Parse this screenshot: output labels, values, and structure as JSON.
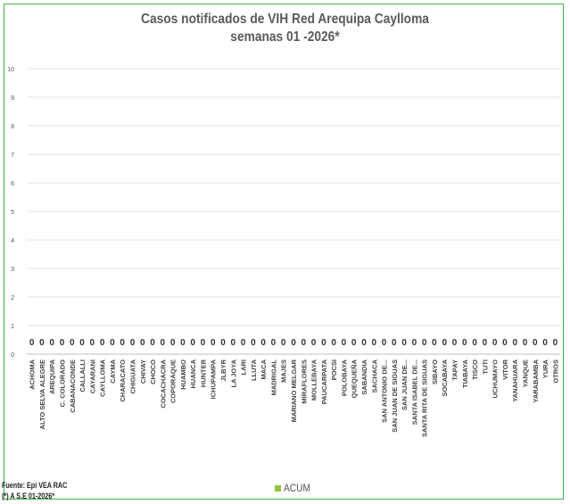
{
  "chart_data": {
    "type": "bar",
    "title": "Casos notificados de VIH Red Arequipa Caylloma",
    "subtitle": "semanas 01 -2026*",
    "xlabel": "",
    "ylabel": "",
    "ylim": [
      0,
      10
    ],
    "yticks": [
      0,
      1,
      2,
      3,
      4,
      5,
      6,
      7,
      8,
      9,
      10
    ],
    "grid": true,
    "legend_position": "bottom",
    "categories": [
      "ACHOMA",
      "ALTO SELVA ALEGRE",
      "AREQUIPA",
      "C. COLORADO",
      "CABANACONDE",
      "CALLALLI",
      "CAYARANI",
      "CAYLLOMA",
      "CAYMA",
      "CHARACATO",
      "CHIGUATA",
      "CHIVAY",
      "CHOCO",
      "COCACHACRA",
      "COPORAQUE",
      "HUAMBO",
      "HUANCA",
      "HUNTER",
      "ICHUPAMPA",
      "JLBYR",
      "LA JOYA",
      "LARI",
      "LLUTA",
      "MACA",
      "MADRIGAL",
      "MAJES",
      "MARIANO MELGAR",
      "MIRAFLORES",
      "MOLLEBAYA",
      "PAUCARPATA",
      "POCSI",
      "POLOBAYA",
      "QUEQUEÑA",
      "SABANDIA",
      "SACHACA",
      "SAN ANTONIO DE...",
      "SAN JUAN DE SIGUAS",
      "SAN JUAN DE...",
      "SANTA ISABEL DE...",
      "SANTA RITA DE SIGUAS",
      "SIBAYO",
      "SOCABAYA",
      "TAPAY",
      "TIABAYA",
      "TISCO",
      "TUTI",
      "UCHUMAYO",
      "VITOR",
      "YANAHUARA",
      "YANQUE",
      "YARABAMBA",
      "YURA",
      "OTROS"
    ],
    "series": [
      {
        "name": "ACUM",
        "color": "#8ec63f",
        "values": [
          0,
          0,
          0,
          0,
          0,
          0,
          0,
          0,
          0,
          0,
          0,
          0,
          0,
          0,
          0,
          0,
          0,
          0,
          0,
          0,
          0,
          0,
          0,
          0,
          0,
          0,
          0,
          0,
          0,
          0,
          0,
          0,
          0,
          0,
          0,
          0,
          0,
          0,
          0,
          0,
          0,
          0,
          0,
          0,
          0,
          0,
          0,
          0,
          0,
          0,
          0,
          0,
          0
        ]
      }
    ]
  },
  "footer": {
    "source": "Fuente: Epi VEA RAC",
    "note": "(*) A S.E 01-2026*"
  },
  "colors": {
    "border": "#3fb24a",
    "grid": "#e3e3e3",
    "axis": "#bfbfbf",
    "text": "#333333"
  }
}
